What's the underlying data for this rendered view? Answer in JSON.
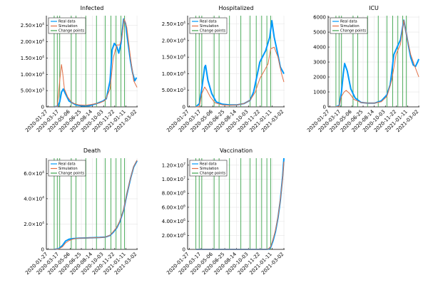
{
  "colors": {
    "real": "#009AFA",
    "sim": "#E26F46",
    "change": "#3DA44D",
    "grid": "#e6e6e6",
    "axis": "#000000",
    "legend_border": "#000000"
  },
  "legend_labels": [
    "Real data",
    "Simulation",
    "Change points"
  ],
  "x_tick_labels": [
    "2020-01-27",
    "2020-03-17",
    "2020-05-06",
    "2020-06-25",
    "2020-08-14",
    "2020-10-03",
    "2020-11-22",
    "2021-01-11",
    "2021-03-02"
  ],
  "chart_data": [
    {
      "type": "line",
      "title": "Infected",
      "legend_position": "top-left",
      "grid": true,
      "x_range": [
        "2020-01-20",
        "2021-03-05"
      ],
      "ylim": [
        0,
        28000
      ],
      "y_ticks": [
        {
          "v": 0,
          "m": "0",
          "e": ""
        },
        {
          "v": 5000,
          "m": "5.00×10",
          "e": "3"
        },
        {
          "v": 10000,
          "m": "1.00×10",
          "e": "4"
        },
        {
          "v": 15000,
          "m": "1.50×10",
          "e": "4"
        },
        {
          "v": 20000,
          "m": "2.00×10",
          "e": "4"
        },
        {
          "v": 25000,
          "m": "2.50×10",
          "e": "4"
        }
      ],
      "change_points": [
        "2020-02-24",
        "2020-03-09",
        "2020-03-20",
        "2020-05-11",
        "2020-06-01",
        "2020-07-15",
        "2020-09-01",
        "2020-10-10",
        "2020-11-05",
        "2020-11-28",
        "2020-12-20",
        "2021-01-05"
      ],
      "series": [
        {
          "name": "Real data",
          "x": [
            "2020-02-24",
            "2020-03-10",
            "2020-03-20",
            "2020-03-28",
            "2020-04-05",
            "2020-04-15",
            "2020-05-01",
            "2020-06-01",
            "2020-07-01",
            "2020-08-01",
            "2020-09-01",
            "2020-10-01",
            "2020-10-15",
            "2020-11-01",
            "2020-11-10",
            "2020-11-20",
            "2020-12-01",
            "2020-12-10",
            "2020-12-20",
            "2021-01-01",
            "2021-01-10",
            "2021-01-20",
            "2021-02-01",
            "2021-02-10",
            "2021-02-20",
            "2021-02-28"
          ],
          "y": [
            0,
            200,
            1500,
            4500,
            5500,
            4000,
            1800,
            600,
            300,
            400,
            1000,
            1800,
            2500,
            8000,
            17500,
            19500,
            18500,
            16500,
            19500,
            27000,
            25500,
            20000,
            14000,
            10500,
            8000,
            9000
          ]
        },
        {
          "name": "Simulation",
          "x": [
            "2020-02-24",
            "2020-03-09",
            "2020-03-20",
            "2020-03-28",
            "2020-04-02",
            "2020-04-10",
            "2020-04-25",
            "2020-05-15",
            "2020-06-15",
            "2020-07-15",
            "2020-08-15",
            "2020-09-15",
            "2020-10-10",
            "2020-11-01",
            "2020-11-15",
            "2020-12-01",
            "2020-12-15",
            "2020-12-25",
            "2021-01-03",
            "2021-01-15",
            "2021-02-01",
            "2021-02-15",
            "2021-03-02"
          ],
          "y": [
            0,
            100,
            8000,
            13000,
            10500,
            5500,
            3000,
            1200,
            600,
            500,
            800,
            1200,
            2000,
            5500,
            15000,
            19000,
            19000,
            22000,
            27000,
            24500,
            15000,
            8000,
            6000
          ]
        }
      ]
    },
    {
      "type": "line",
      "title": "Hospitalized",
      "legend_position": "top-left",
      "grid": true,
      "x_range": [
        "2020-01-20",
        "2021-03-05"
      ],
      "ylim": [
        0,
        27500
      ],
      "y_ticks": [
        {
          "v": 0,
          "m": "0",
          "e": ""
        },
        {
          "v": 5000,
          "m": "5.00×10",
          "e": "3"
        },
        {
          "v": 10000,
          "m": "1.00×10",
          "e": "4"
        },
        {
          "v": 15000,
          "m": "1.50×10",
          "e": "4"
        },
        {
          "v": 20000,
          "m": "2.00×10",
          "e": "4"
        },
        {
          "v": 25000,
          "m": "2.50×10",
          "e": "4"
        }
      ],
      "change_points": [
        "2020-02-24",
        "2020-03-09",
        "2020-03-20",
        "2020-05-11",
        "2020-06-01",
        "2020-07-15",
        "2020-09-01",
        "2020-10-10",
        "2020-11-05",
        "2020-11-28",
        "2020-12-20",
        "2021-01-05"
      ],
      "series": [
        {
          "name": "Real data",
          "x": [
            "2020-02-24",
            "2020-03-10",
            "2020-03-20",
            "2020-04-01",
            "2020-04-05",
            "2020-04-15",
            "2020-05-01",
            "2020-05-20",
            "2020-06-15",
            "2020-07-15",
            "2020-08-15",
            "2020-09-15",
            "2020-10-10",
            "2020-10-25",
            "2020-11-10",
            "2020-11-20",
            "2020-12-01",
            "2020-12-15",
            "2021-01-01",
            "2021-01-10",
            "2021-01-20",
            "2021-02-01",
            "2021-02-15",
            "2021-03-02"
          ],
          "y": [
            0,
            1000,
            5500,
            12000,
            12500,
            8000,
            4000,
            1500,
            800,
            600,
            600,
            1000,
            2000,
            4500,
            10000,
            13500,
            15000,
            17000,
            21000,
            26000,
            21000,
            17000,
            12000,
            10000
          ]
        },
        {
          "name": "Simulation",
          "x": [
            "2020-02-24",
            "2020-03-09",
            "2020-03-20",
            "2020-04-01",
            "2020-04-10",
            "2020-04-25",
            "2020-05-15",
            "2020-06-15",
            "2020-07-15",
            "2020-08-15",
            "2020-09-15",
            "2020-10-10",
            "2020-11-01",
            "2020-11-20",
            "2020-12-10",
            "2020-12-25",
            "2021-01-05",
            "2021-01-20",
            "2021-02-05",
            "2021-02-20",
            "2021-03-02"
          ],
          "y": [
            0,
            100,
            4000,
            6000,
            5000,
            3000,
            1200,
            600,
            500,
            600,
            1000,
            2000,
            4500,
            8500,
            11000,
            13000,
            17500,
            18000,
            15000,
            10000,
            7500
          ]
        }
      ]
    },
    {
      "type": "line",
      "title": "ICU",
      "legend_position": "top-left",
      "grid": true,
      "x_range": [
        "2020-01-20",
        "2021-03-05"
      ],
      "ylim": [
        0,
        6100
      ],
      "y_ticks": [
        {
          "v": 0,
          "m": "0",
          "e": ""
        },
        {
          "v": 1000,
          "m": "1000",
          "e": ""
        },
        {
          "v": 2000,
          "m": "2000",
          "e": ""
        },
        {
          "v": 3000,
          "m": "3000",
          "e": ""
        },
        {
          "v": 4000,
          "m": "4000",
          "e": ""
        },
        {
          "v": 5000,
          "m": "5000",
          "e": ""
        },
        {
          "v": 6000,
          "m": "6000",
          "e": ""
        }
      ],
      "change_points": [
        "2020-02-24",
        "2020-03-09",
        "2020-03-20",
        "2020-05-11",
        "2020-06-01",
        "2020-07-15",
        "2020-09-01",
        "2020-10-10",
        "2020-11-05",
        "2020-11-28",
        "2020-12-20",
        "2021-01-05"
      ],
      "series": [
        {
          "name": "Real data",
          "x": [
            "2020-02-24",
            "2020-03-10",
            "2020-03-20",
            "2020-03-28",
            "2020-04-03",
            "2020-04-15",
            "2020-05-01",
            "2020-05-20",
            "2020-06-15",
            "2020-07-15",
            "2020-08-15",
            "2020-09-15",
            "2020-10-10",
            "2020-10-25",
            "2020-11-10",
            "2020-11-25",
            "2020-12-10",
            "2020-12-25",
            "2021-01-10",
            "2021-01-25",
            "2021-02-05",
            "2021-02-15",
            "2021-02-25",
            "2021-03-02"
          ],
          "y": [
            0,
            100,
            1000,
            2200,
            2900,
            2400,
            1200,
            600,
            300,
            250,
            250,
            400,
            800,
            1500,
            3500,
            4000,
            4500,
            5800,
            4500,
            3300,
            2800,
            2700,
            3000,
            3200
          ]
        },
        {
          "name": "Simulation",
          "x": [
            "2020-02-24",
            "2020-03-09",
            "2020-03-20",
            "2020-04-01",
            "2020-04-10",
            "2020-04-25",
            "2020-05-15",
            "2020-06-15",
            "2020-07-15",
            "2020-08-15",
            "2020-09-15",
            "2020-10-10",
            "2020-11-01",
            "2020-11-20",
            "2020-12-10",
            "2020-12-25",
            "2021-01-10",
            "2021-01-25",
            "2021-02-10",
            "2021-03-02"
          ],
          "y": [
            0,
            50,
            700,
            1000,
            1100,
            900,
            500,
            300,
            250,
            250,
            350,
            700,
            1800,
            3500,
            4200,
            5800,
            4500,
            3500,
            2800,
            2000
          ]
        }
      ]
    },
    {
      "type": "line",
      "title": "Death",
      "legend_position": "top-left",
      "grid": true,
      "x_range": [
        "2020-01-20",
        "2021-03-05"
      ],
      "ylim": [
        0,
        72000
      ],
      "y_ticks": [
        {
          "v": 0,
          "m": "0",
          "e": ""
        },
        {
          "v": 20000,
          "m": "2.0×10",
          "e": "4"
        },
        {
          "v": 40000,
          "m": "4.0×10",
          "e": "4"
        },
        {
          "v": 60000,
          "m": "6.0×10",
          "e": "4"
        }
      ],
      "change_points": [
        "2020-02-24",
        "2020-03-09",
        "2020-03-20",
        "2020-05-11",
        "2020-06-01",
        "2020-07-15",
        "2020-09-01",
        "2020-10-10",
        "2020-11-05",
        "2020-11-28",
        "2020-12-20",
        "2021-01-05"
      ],
      "series": [
        {
          "name": "Real data",
          "x": [
            "2020-02-24",
            "2020-03-15",
            "2020-04-01",
            "2020-04-15",
            "2020-05-01",
            "2020-05-20",
            "2020-06-15",
            "2020-07-15",
            "2020-08-15",
            "2020-09-15",
            "2020-10-10",
            "2020-11-01",
            "2020-11-15",
            "2020-12-01",
            "2020-12-15",
            "2021-01-01",
            "2021-01-15",
            "2021-02-01",
            "2021-02-15",
            "2021-03-02"
          ],
          "y": [
            0,
            500,
            3000,
            6500,
            8000,
            8500,
            8900,
            9000,
            9200,
            9400,
            9700,
            11000,
            13500,
            17000,
            22000,
            31000,
            43000,
            56000,
            65000,
            70000
          ]
        },
        {
          "name": "Simulation",
          "x": [
            "2020-02-24",
            "2020-03-15",
            "2020-04-01",
            "2020-04-15",
            "2020-05-01",
            "2020-05-20",
            "2020-06-15",
            "2020-07-15",
            "2020-08-15",
            "2020-09-15",
            "2020-10-10",
            "2020-11-01",
            "2020-11-15",
            "2020-12-01",
            "2020-12-15",
            "2021-01-01",
            "2021-01-15",
            "2021-02-01",
            "2021-02-15",
            "2021-03-02"
          ],
          "y": [
            0,
            300,
            2000,
            5000,
            7000,
            8200,
            8900,
            9000,
            9100,
            9300,
            9700,
            11200,
            14000,
            17500,
            22500,
            31500,
            43500,
            56500,
            65500,
            70500
          ]
        }
      ]
    },
    {
      "type": "line",
      "title": "Vaccination",
      "legend_position": "top-left",
      "grid": true,
      "x_range": [
        "2020-01-20",
        "2021-03-05"
      ],
      "ylim": [
        0,
        13000000
      ],
      "y_ticks": [
        {
          "v": 0,
          "m": "0",
          "e": ""
        },
        {
          "v": 2000000,
          "m": "2.00×10",
          "e": "6"
        },
        {
          "v": 4000000,
          "m": "4.00×10",
          "e": "6"
        },
        {
          "v": 6000000,
          "m": "6.00×10",
          "e": "6"
        },
        {
          "v": 8000000,
          "m": "8.00×10",
          "e": "6"
        },
        {
          "v": 10000000,
          "m": "1.00×10",
          "e": "7"
        },
        {
          "v": 12000000,
          "m": "1.20×10",
          "e": "7"
        }
      ],
      "change_points": [
        "2020-02-24",
        "2020-03-09",
        "2020-03-20",
        "2020-05-11",
        "2020-06-01",
        "2020-07-15",
        "2020-09-01",
        "2020-10-10",
        "2020-11-05",
        "2020-11-28",
        "2020-12-20",
        "2021-01-05"
      ],
      "series": [
        {
          "name": "Real data",
          "x": [
            "2020-02-24",
            "2020-12-20",
            "2020-12-27",
            "2021-01-05",
            "2021-01-15",
            "2021-01-25",
            "2021-02-05",
            "2021-02-15",
            "2021-02-25",
            "2021-03-02"
          ],
          "y": [
            0,
            0,
            50000,
            300000,
            1200000,
            2500000,
            4500000,
            7000000,
            10500000,
            13000000
          ]
        },
        {
          "name": "Simulation",
          "x": [
            "2020-02-24",
            "2020-12-20",
            "2020-12-27",
            "2021-01-05",
            "2021-01-15",
            "2021-01-25",
            "2021-02-05",
            "2021-02-15",
            "2021-02-25",
            "2021-03-02"
          ],
          "y": [
            0,
            0,
            80000,
            400000,
            1400000,
            2700000,
            4600000,
            7100000,
            10200000,
            12500000
          ]
        }
      ]
    }
  ]
}
